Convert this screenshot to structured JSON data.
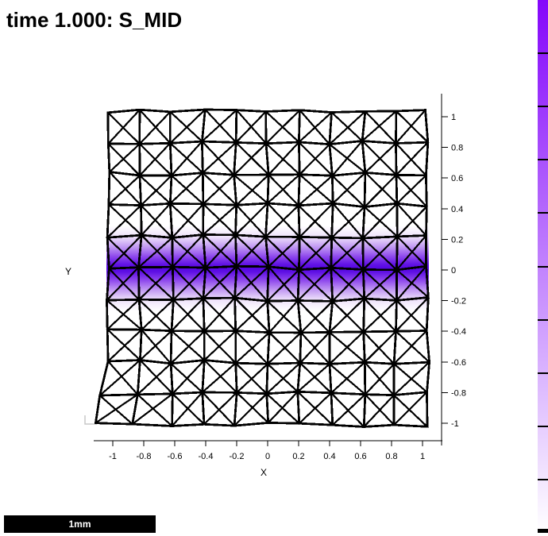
{
  "title": "time 1.000: S_MID",
  "scalebar": {
    "label": "1mm",
    "bg": "#000000",
    "text_color": "#ffffff"
  },
  "colorbar": {
    "top_color": "#8406fb",
    "bottom_color": "#ffffff",
    "segments": 10,
    "tick_color": "#000000"
  },
  "chart_data": {
    "type": "heatmap",
    "title": "time 1.000: S_MID",
    "time_label": "1.000",
    "field_name": "S_MID",
    "xlabel": "X",
    "ylabel": "Y",
    "x_ticks": [
      -1,
      -0.8,
      -0.6,
      -0.4,
      -0.2,
      0,
      0.2,
      0.4,
      0.6,
      0.8,
      1
    ],
    "y_ticks": [
      1,
      0.8,
      0.6,
      0.4,
      0.2,
      0,
      -0.2,
      -0.4,
      -0.6,
      -0.8,
      -1
    ],
    "xlim": [
      -1.05,
      1.05
    ],
    "ylim": [
      -1.05,
      1.08
    ],
    "grid": false,
    "legend_position": "right-edge-colorbar-clipped",
    "mesh": {
      "nx": 10,
      "ny": 10,
      "element": "quad-with-crossed-diagonals",
      "domain_x": [
        -1,
        1
      ],
      "domain_y": [
        -1,
        1
      ],
      "line_color": "#000000",
      "deformed": true
    },
    "field_band": {
      "description": "S_MID field concentrated in a horizontal band centered at y=0, fading to white by |y| ~ 0.3",
      "center_y": 0,
      "half_width_y": 0.28,
      "gradient_stops": [
        {
          "offset": 0.0,
          "color": "#ffffff"
        },
        {
          "offset": 0.13,
          "color": "#efe3fb"
        },
        {
          "offset": 0.26,
          "color": "#bd92f2"
        },
        {
          "offset": 0.37,
          "color": "#8a42ec"
        },
        {
          "offset": 0.46,
          "color": "#5f10e4"
        },
        {
          "offset": 0.5,
          "color": "#5606e2"
        },
        {
          "offset": 0.54,
          "color": "#5f10e4"
        },
        {
          "offset": 0.63,
          "color": "#8a42ec"
        },
        {
          "offset": 0.74,
          "color": "#bd92f2"
        },
        {
          "offset": 0.87,
          "color": "#efe3fb"
        },
        {
          "offset": 1.0,
          "color": "#ffffff"
        }
      ]
    }
  }
}
